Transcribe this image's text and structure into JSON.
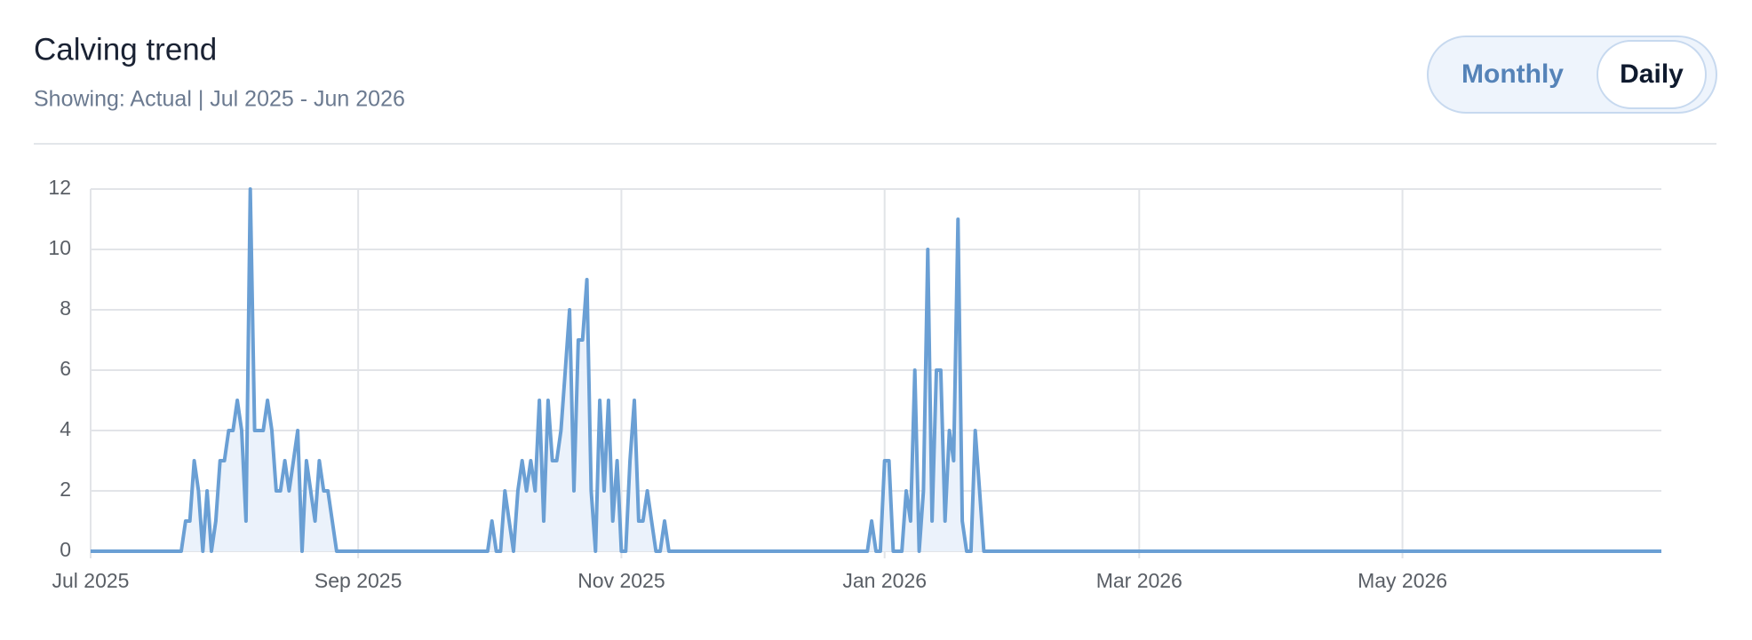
{
  "toggle": {
    "options": [
      "Monthly",
      "Daily"
    ],
    "selected": 1
  },
  "chart_data": {
    "type": "area",
    "title": "Calving trend",
    "subtitle": "Showing: Actual | Jul 2025 - Jun 2026",
    "color": "#6a9fd4",
    "fill": "#ebf2fb",
    "grid": true,
    "xlim": [
      0,
      364
    ],
    "ylim": [
      0,
      12
    ],
    "yticks": [
      0,
      2,
      4,
      6,
      8,
      10,
      12
    ],
    "xticks": [
      {
        "value": 0,
        "label": "Jul 2025"
      },
      {
        "value": 62,
        "label": "Sep 2025"
      },
      {
        "value": 123,
        "label": "Nov 2025"
      },
      {
        "value": 184,
        "label": "Jan 2026"
      },
      {
        "value": 243,
        "label": "Mar 2026"
      },
      {
        "value": 304,
        "label": "May 2026"
      }
    ],
    "values": [
      0,
      0,
      0,
      0,
      0,
      0,
      0,
      0,
      0,
      0,
      0,
      0,
      0,
      0,
      0,
      0,
      0,
      0,
      0,
      0,
      0,
      0,
      1,
      1,
      3,
      2,
      0,
      2,
      0,
      1,
      3,
      3,
      4,
      4,
      5,
      4,
      1,
      12,
      4,
      4,
      4,
      5,
      4,
      2,
      2,
      3,
      2,
      3,
      4,
      0,
      3,
      2,
      1,
      3,
      2,
      2,
      1,
      0,
      0,
      0,
      0,
      0,
      0,
      0,
      0,
      0,
      0,
      0,
      0,
      0,
      0,
      0,
      0,
      0,
      0,
      0,
      0,
      0,
      0,
      0,
      0,
      0,
      0,
      0,
      0,
      0,
      0,
      0,
      0,
      0,
      0,
      0,
      0,
      1,
      0,
      0,
      2,
      1,
      0,
      2,
      3,
      2,
      3,
      2,
      5,
      1,
      5,
      3,
      3,
      4,
      6,
      8,
      2,
      7,
      7,
      9,
      2,
      0,
      5,
      2,
      5,
      1,
      3,
      0,
      0,
      3,
      5,
      1,
      1,
      2,
      1,
      0,
      0,
      1,
      0,
      0,
      0,
      0,
      0,
      0,
      0,
      0,
      0,
      0,
      0,
      0,
      0,
      0,
      0,
      0,
      0,
      0,
      0,
      0,
      0,
      0,
      0,
      0,
      0,
      0,
      0,
      0,
      0,
      0,
      0,
      0,
      0,
      0,
      0,
      0,
      0,
      0,
      0,
      0,
      0,
      0,
      0,
      0,
      0,
      0,
      0,
      1,
      0,
      0,
      3,
      3,
      0,
      0,
      0,
      2,
      1,
      6,
      0,
      2,
      10,
      1,
      6,
      6,
      1,
      4,
      3,
      11,
      1,
      0,
      0,
      4,
      2,
      0,
      0,
      0,
      0,
      0,
      0,
      0,
      0,
      0,
      0,
      0,
      0,
      0,
      0,
      0,
      0,
      0,
      0,
      0,
      0,
      0,
      0,
      0,
      0,
      0,
      0,
      0,
      0,
      0,
      0,
      0,
      0,
      0,
      0,
      0,
      0,
      0,
      0,
      0,
      0,
      0,
      0,
      0,
      0,
      0,
      0,
      0,
      0,
      0,
      0,
      0,
      0,
      0,
      0,
      0,
      0,
      0,
      0,
      0,
      0,
      0,
      0,
      0,
      0,
      0,
      0,
      0,
      0,
      0,
      0,
      0,
      0,
      0,
      0,
      0,
      0,
      0,
      0,
      0,
      0,
      0,
      0,
      0,
      0,
      0,
      0,
      0,
      0,
      0,
      0,
      0,
      0,
      0,
      0,
      0,
      0,
      0,
      0,
      0,
      0,
      0,
      0,
      0,
      0,
      0,
      0,
      0,
      0,
      0,
      0,
      0,
      0,
      0,
      0,
      0,
      0,
      0,
      0,
      0,
      0,
      0,
      0,
      0,
      0,
      0,
      0,
      0,
      0,
      0,
      0,
      0,
      0,
      0,
      0,
      0,
      0,
      0,
      0,
      0,
      0,
      0,
      0,
      0,
      0,
      0,
      0,
      0,
      0,
      0,
      0,
      0,
      0,
      0,
      0,
      0,
      0,
      0,
      0
    ]
  }
}
